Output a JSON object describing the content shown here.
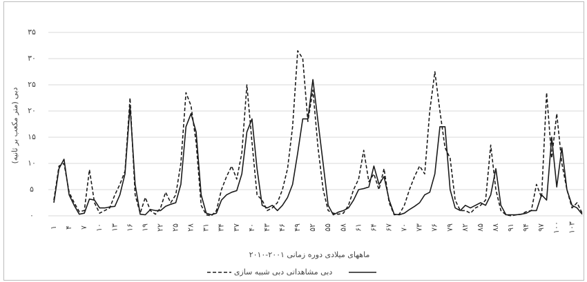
{
  "chart_data": {
    "type": "line",
    "y_label": "دبی (متر مکعب بر ثانیه)",
    "x_label": "ماههای میلادی دوره زمانی ۲۰۰۱-۲۰۱۰",
    "categories": [
      "۱",
      null,
      null,
      "۴",
      null,
      null,
      "۷",
      null,
      null,
      "۱۰",
      null,
      null,
      "۱۳",
      null,
      null,
      "۱۶",
      null,
      null,
      "۱۹",
      null,
      null,
      "۲۲",
      null,
      null,
      "۲۵",
      null,
      null,
      "۲۸",
      null,
      null,
      "۳۱",
      null,
      null,
      "۳۴",
      null,
      null,
      "۳۷",
      null,
      null,
      "۴۰",
      null,
      null,
      "۴۳",
      null,
      null,
      "۴۶",
      null,
      null,
      "۴۹",
      null,
      null,
      "۵۲",
      null,
      null,
      "۵۵",
      null,
      null,
      "۵۸",
      null,
      null,
      "۶۱",
      null,
      null,
      "۶۴",
      null,
      null,
      "۶۷",
      null,
      null,
      "۷۰",
      null,
      null,
      "۷۳",
      null,
      null,
      "۷۶",
      null,
      null,
      "۷۹",
      null,
      null,
      "۸۲",
      null,
      null,
      "۸۵",
      null,
      null,
      "۸۸",
      null,
      null,
      "۹۱",
      null,
      null,
      "۹۴",
      null,
      null,
      "۹۷",
      null,
      null,
      "۱۰۰",
      null,
      null,
      "۱۰۳",
      null,
      null
    ],
    "series": [
      {
        "name": "دبی شبیه سازی",
        "color": "#1a1a1a",
        "line_style": "dashed",
        "values": [
          3,
          9.5,
          10,
          4.5,
          2.5,
          0.8,
          1,
          8.8,
          2.5,
          0.5,
          1,
          1.5,
          4,
          6,
          8.5,
          22.5,
          4,
          0.5,
          3.5,
          1,
          0.3,
          1.5,
          4.5,
          2.5,
          4,
          10,
          23.5,
          21,
          14,
          2,
          0.2,
          0,
          1,
          5,
          7.5,
          9.5,
          7,
          12,
          25,
          14,
          4,
          3,
          1,
          1.5,
          2.5,
          5,
          9,
          17,
          31.5,
          30,
          18,
          24,
          13,
          5,
          1,
          0.5,
          0.3,
          0.5,
          2,
          5,
          7,
          12.5,
          6.5,
          8,
          5,
          9,
          2.5,
          0.2,
          0.3,
          2,
          5,
          7.5,
          9.5,
          8,
          20,
          27.5,
          20,
          13,
          11,
          3,
          1,
          1,
          0.5,
          1.5,
          2,
          3,
          13.5,
          5,
          1,
          0.2,
          0,
          0.2,
          0.3,
          0.8,
          1,
          6,
          3.5,
          23.5,
          11,
          19.5,
          10,
          5,
          1.5,
          2.5,
          0.5
        ]
      },
      {
        "name": "دبی مشاهداتی",
        "color": "#1a1a1a",
        "line_style": "solid",
        "values": [
          2.5,
          9,
          10.8,
          4,
          2,
          0.3,
          0.5,
          3.2,
          3,
          1.5,
          1.5,
          1.7,
          1.8,
          4,
          8,
          21,
          6,
          0.3,
          0.2,
          1.2,
          1,
          1,
          1.8,
          2.2,
          2.5,
          6,
          17,
          19.5,
          16,
          4,
          0.5,
          0.2,
          0.5,
          3,
          4,
          4.5,
          4.8,
          8,
          16,
          18.5,
          9,
          2,
          1.5,
          2,
          1,
          2,
          3.5,
          6,
          12,
          18.5,
          18.5,
          26,
          18,
          10,
          2,
          0.2,
          0.7,
          1,
          1.5,
          3,
          5,
          5.2,
          5.5,
          9.5,
          6,
          7.5,
          3,
          0.3,
          0.2,
          0.5,
          1.2,
          1.8,
          2.5,
          4,
          4.5,
          8,
          17,
          17,
          5,
          1.5,
          1,
          2,
          1.5,
          2,
          2.5,
          2,
          4,
          9,
          2,
          0.2,
          0.2,
          0.2,
          0.3,
          0.5,
          1,
          1,
          4,
          3,
          15,
          5.5,
          13,
          5,
          2,
          1.5,
          0.3
        ]
      }
    ],
    "ylim": [
      0,
      35
    ],
    "yticks": [
      {
        "value": 0,
        "label": "۰"
      },
      {
        "value": 5,
        "label": "۵"
      },
      {
        "value": 10,
        "label": "۱۰"
      },
      {
        "value": 15,
        "label": "۱۵"
      },
      {
        "value": 20,
        "label": "۲۰"
      },
      {
        "value": 25,
        "label": "۲۵"
      },
      {
        "value": 30,
        "label": "۳۰"
      },
      {
        "value": 35,
        "label": "۳۵"
      }
    ],
    "grid": true
  }
}
